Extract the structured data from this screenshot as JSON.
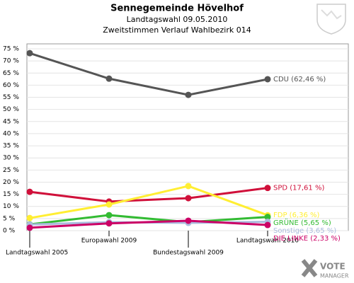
{
  "chart_data": {
    "type": "line",
    "title": "Sennegemeinde Hövelhof",
    "subtitle": [
      "Landtagswahl 09.05.2010",
      "Zweitstimmen Verlauf Wahlbezirk 014"
    ],
    "categories": [
      "Landtagswahl 2005",
      "Europawahl 2009",
      "Bundestagswahl 2009",
      "Landtagswahl 2010"
    ],
    "series": [
      {
        "name": "CDU (62,46 %)",
        "color": "#555555",
        "values": [
          73.2,
          62.7,
          56.0,
          62.46
        ]
      },
      {
        "name": "SPD (17,61 %)",
        "color": "#d0103a",
        "values": [
          16.0,
          12.0,
          13.4,
          17.61
        ]
      },
      {
        "name": "FDP (6,36 %)",
        "color": "#ffee33",
        "values": [
          5.2,
          10.8,
          18.4,
          6.36
        ]
      },
      {
        "name": "GRÜNE (5,65 %)",
        "color": "#33bb33",
        "values": [
          2.6,
          6.4,
          3.5,
          5.65
        ]
      },
      {
        "name": "Sonstige (3,65 %)",
        "color": "#aabbdd",
        "values": [
          2.5,
          3.5,
          3.2,
          3.65
        ]
      },
      {
        "name": "DIE LINKE (2,33 %)",
        "color": "#cc0066",
        "values": [
          1.2,
          3.0,
          4.1,
          2.33
        ]
      }
    ],
    "ylim": [
      0,
      75
    ],
    "yticks": [
      {
        "value": 0,
        "label": "0 %"
      },
      {
        "value": 5,
        "label": "5 %"
      },
      {
        "value": 10,
        "label": "10 %"
      },
      {
        "value": 15,
        "label": "15 %"
      },
      {
        "value": 20,
        "label": "20 %"
      },
      {
        "value": 25,
        "label": "25 %"
      },
      {
        "value": 30,
        "label": "30 %"
      },
      {
        "value": 35,
        "label": "35 %"
      },
      {
        "value": 40,
        "label": "40 %"
      },
      {
        "value": 45,
        "label": "45 %"
      },
      {
        "value": 50,
        "label": "50 %"
      },
      {
        "value": 55,
        "label": "55 %"
      },
      {
        "value": 60,
        "label": "60 %"
      },
      {
        "value": 65,
        "label": "65 %"
      },
      {
        "value": 70,
        "label": "70 %"
      },
      {
        "value": 75,
        "label": "75 %"
      }
    ],
    "grid": true,
    "logo": [
      "VOTE",
      "MANAGER"
    ]
  }
}
